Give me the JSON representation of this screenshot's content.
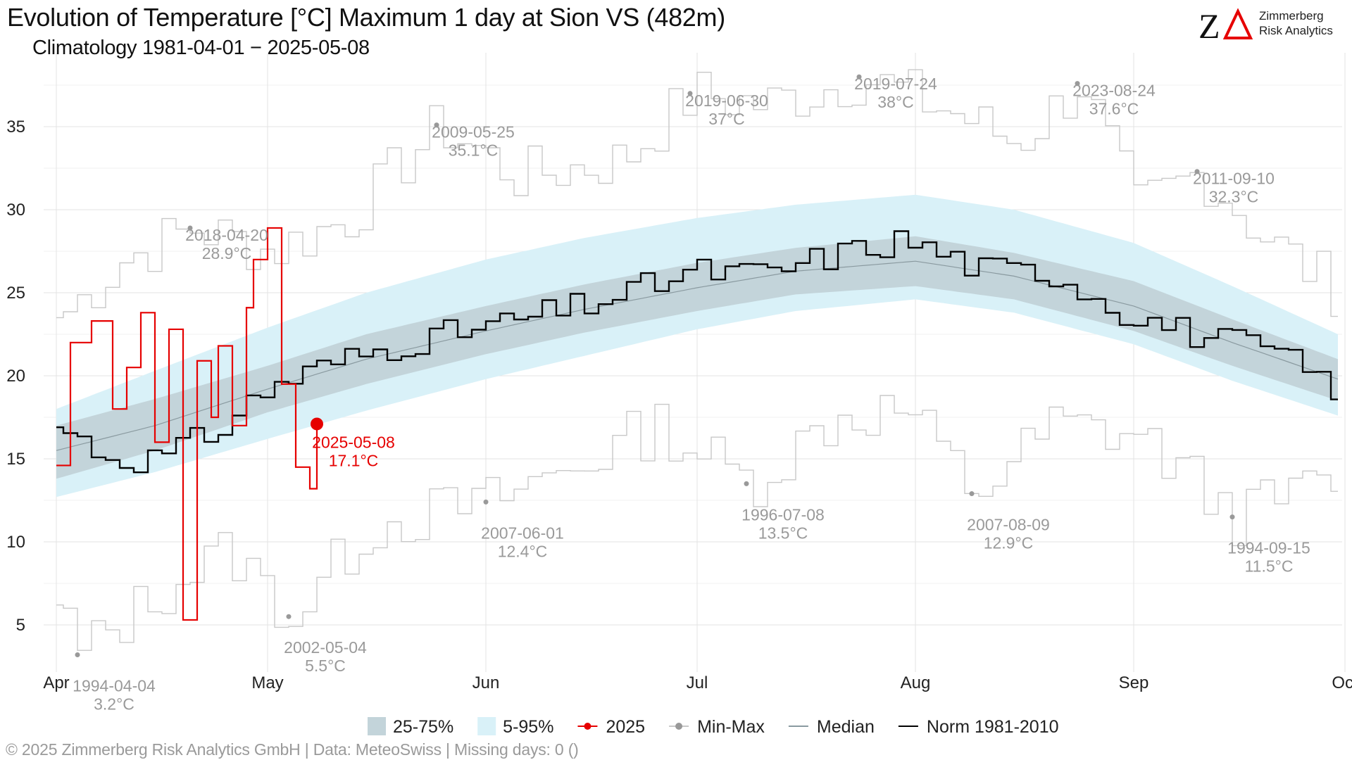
{
  "chart_data": {
    "type": "line",
    "title": "Evolution of Temperature [°C] Maximum 1 day at Sion  VS (482m)",
    "subtitle": "Climatology 1981-04-01 − 2025-05-08",
    "xlabel": "",
    "ylabel": "",
    "x_range": [
      "2025-04-01",
      "2025-09-30"
    ],
    "ylim": [
      2.5,
      39
    ],
    "y_ticks": [
      5,
      10,
      15,
      20,
      25,
      30,
      35
    ],
    "x_ticks": [
      {
        "date": "2025-04-01",
        "label": "Apr"
      },
      {
        "date": "2025-05-01",
        "label": "May"
      },
      {
        "date": "2025-06-01",
        "label": "Jun"
      },
      {
        "date": "2025-07-01",
        "label": "Jul"
      },
      {
        "date": "2025-08-01",
        "label": "Aug"
      },
      {
        "date": "2025-09-01",
        "label": "Sep"
      },
      {
        "date": "2025-10-01",
        "label": "Oct"
      }
    ],
    "grid": true,
    "legend_position": "bottom",
    "colors": {
      "band_iqr": "#c3d4da",
      "band_5_95": "#d9f1f8",
      "current": "#e60000",
      "minmax": "#c8c8c8",
      "minmax_point": "#999999",
      "median": "#8a9aa0",
      "norm": "#000000"
    },
    "legend": [
      {
        "key": "iqr",
        "label": "25-75%"
      },
      {
        "key": "p5_95",
        "label": "5-95%"
      },
      {
        "key": "current",
        "label": "2025"
      },
      {
        "key": "minmax",
        "label": "Min-Max"
      },
      {
        "key": "median",
        "label": "Median"
      },
      {
        "key": "norm",
        "label": "Norm 1981-2010"
      }
    ],
    "series": [
      {
        "name": "2025",
        "x": [
          "2025-04-01",
          "2025-04-03",
          "2025-04-06",
          "2025-04-09",
          "2025-04-11",
          "2025-04-13",
          "2025-04-15",
          "2025-04-17",
          "2025-04-19",
          "2025-04-21",
          "2025-04-23",
          "2025-04-24",
          "2025-04-26",
          "2025-04-28",
          "2025-04-29",
          "2025-05-01",
          "2025-05-03",
          "2025-05-05",
          "2025-05-07",
          "2025-05-08"
        ],
        "values": [
          14.6,
          22.0,
          23.3,
          18.0,
          20.5,
          23.8,
          16.0,
          22.8,
          5.3,
          20.9,
          17.5,
          21.8,
          17.0,
          24.1,
          27.0,
          28.9,
          19.5,
          14.5,
          13.2,
          17.1
        ]
      },
      {
        "name": "Norm 1981-2010",
        "x": [
          "2025-04-01",
          "2025-04-08",
          "2025-04-15",
          "2025-04-22",
          "2025-05-01",
          "2025-05-10",
          "2025-05-20",
          "2025-05-31",
          "2025-06-10",
          "2025-06-20",
          "2025-06-30",
          "2025-07-10",
          "2025-07-20",
          "2025-07-30",
          "2025-08-10",
          "2025-08-20",
          "2025-08-31",
          "2025-09-10",
          "2025-09-20",
          "2025-09-30"
        ],
        "values": [
          16.9,
          15.1,
          15.0,
          16.4,
          19.4,
          20.8,
          22.0,
          22.9,
          23.8,
          24.9,
          26.3,
          26.1,
          27.3,
          28.2,
          26.4,
          26.2,
          23.7,
          22.4,
          21.5,
          19.1
        ]
      },
      {
        "name": "Median",
        "x": [
          "2025-04-01",
          "2025-04-15",
          "2025-05-01",
          "2025-05-15",
          "2025-06-01",
          "2025-06-15",
          "2025-07-01",
          "2025-07-15",
          "2025-08-01",
          "2025-08-15",
          "2025-09-01",
          "2025-09-15",
          "2025-09-30"
        ],
        "values": [
          15.5,
          17.0,
          19.2,
          21.0,
          22.7,
          24.0,
          25.3,
          26.3,
          26.9,
          26.0,
          24.2,
          22.0,
          19.8
        ]
      },
      {
        "name": "25-75%",
        "x": [
          "2025-04-01",
          "2025-04-15",
          "2025-05-01",
          "2025-05-15",
          "2025-06-01",
          "2025-06-15",
          "2025-07-01",
          "2025-07-15",
          "2025-08-01",
          "2025-08-15",
          "2025-09-01",
          "2025-09-15",
          "2025-09-30"
        ],
        "low": [
          13.8,
          15.5,
          17.8,
          19.5,
          21.3,
          22.6,
          23.9,
          24.9,
          25.4,
          24.6,
          22.7,
          20.6,
          18.5
        ],
        "high": [
          17.0,
          18.6,
          20.6,
          22.5,
          24.2,
          25.5,
          26.8,
          27.7,
          28.4,
          27.4,
          25.7,
          23.4,
          21.0
        ]
      },
      {
        "name": "5-95%",
        "x": [
          "2025-04-01",
          "2025-04-15",
          "2025-05-01",
          "2025-05-15",
          "2025-06-01",
          "2025-06-15",
          "2025-07-01",
          "2025-07-15",
          "2025-08-01",
          "2025-08-15",
          "2025-09-01",
          "2025-09-15",
          "2025-09-30"
        ],
        "low": [
          12.7,
          14.2,
          16.2,
          17.9,
          19.8,
          21.2,
          22.8,
          23.9,
          24.6,
          23.8,
          21.9,
          19.7,
          17.6
        ],
        "high": [
          18.0,
          20.3,
          22.9,
          25.0,
          27.0,
          28.3,
          29.5,
          30.3,
          30.9,
          30.0,
          28.0,
          25.4,
          22.5
        ]
      },
      {
        "name": "Max",
        "x": [
          "2025-04-01",
          "2025-04-10",
          "2025-04-20",
          "2025-05-01",
          "2025-05-12",
          "2025-05-25",
          "2025-06-05",
          "2025-06-20",
          "2025-06-30",
          "2025-07-10",
          "2025-07-24",
          "2025-08-05",
          "2025-08-15",
          "2025-08-24",
          "2025-09-01",
          "2025-09-10",
          "2025-09-20",
          "2025-09-30"
        ],
        "values": [
          23.5,
          27.0,
          28.9,
          27.5,
          29.5,
          35.1,
          32.0,
          33.0,
          37.0,
          36.3,
          38.0,
          36.0,
          34.0,
          37.6,
          30.0,
          32.3,
          28.0,
          25.0
        ]
      },
      {
        "name": "Min",
        "x": [
          "2025-04-01",
          "2025-04-04",
          "2025-04-15",
          "2025-04-25",
          "2025-05-04",
          "2025-05-15",
          "2025-06-01",
          "2025-06-15",
          "2025-06-25",
          "2025-07-08",
          "2025-07-20",
          "2025-07-30",
          "2025-08-09",
          "2025-08-20",
          "2025-09-01",
          "2025-09-15",
          "2025-09-30"
        ],
        "values": [
          6.2,
          3.2,
          7.0,
          9.5,
          5.5,
          11.0,
          12.4,
          15.0,
          17.0,
          13.5,
          17.5,
          18.0,
          12.9,
          17.0,
          16.5,
          11.5,
          14.0
        ]
      }
    ],
    "annotations": [
      {
        "label": "1994-04-04",
        "value": "3.2°C",
        "x": "2025-04-04",
        "y": 3.2
      },
      {
        "label": "2018-04-20",
        "value": "28.9°C",
        "x": "2025-04-20",
        "y": 28.9
      },
      {
        "label": "2002-05-04",
        "value": "5.5°C",
        "x": "2025-05-04",
        "y": 5.5
      },
      {
        "label": "2009-05-25",
        "value": "35.1°C",
        "x": "2025-05-25",
        "y": 35.1
      },
      {
        "label": "2007-06-01",
        "value": "12.4°C",
        "x": "2025-06-01",
        "y": 12.4
      },
      {
        "label": "2019-06-30",
        "value": "37°C",
        "x": "2025-06-30",
        "y": 37.0
      },
      {
        "label": "1996-07-08",
        "value": "13.5°C",
        "x": "2025-07-08",
        "y": 13.5
      },
      {
        "label": "2019-07-24",
        "value": "38°C",
        "x": "2025-07-24",
        "y": 38.0
      },
      {
        "label": "2007-08-09",
        "value": "12.9°C",
        "x": "2025-08-09",
        "y": 12.9
      },
      {
        "label": "2023-08-24",
        "value": "37.6°C",
        "x": "2025-08-24",
        "y": 37.6
      },
      {
        "label": "2011-09-10",
        "value": "32.3°C",
        "x": "2025-09-10",
        "y": 32.3
      },
      {
        "label": "1994-09-15",
        "value": "11.5°C",
        "x": "2025-09-15",
        "y": 11.5
      }
    ],
    "current_point": {
      "label": "2025-05-08",
      "value": "17.1°C",
      "x": "2025-05-08",
      "y": 17.1
    }
  },
  "logo": {
    "mark": "ZΔ",
    "line1": "Zimmerberg",
    "line2": "Risk Analytics"
  },
  "footer": "©  2025 Zimmerberg Risk Analytics GmbH | Data: MeteoSwiss | Missing days: 0 ()"
}
